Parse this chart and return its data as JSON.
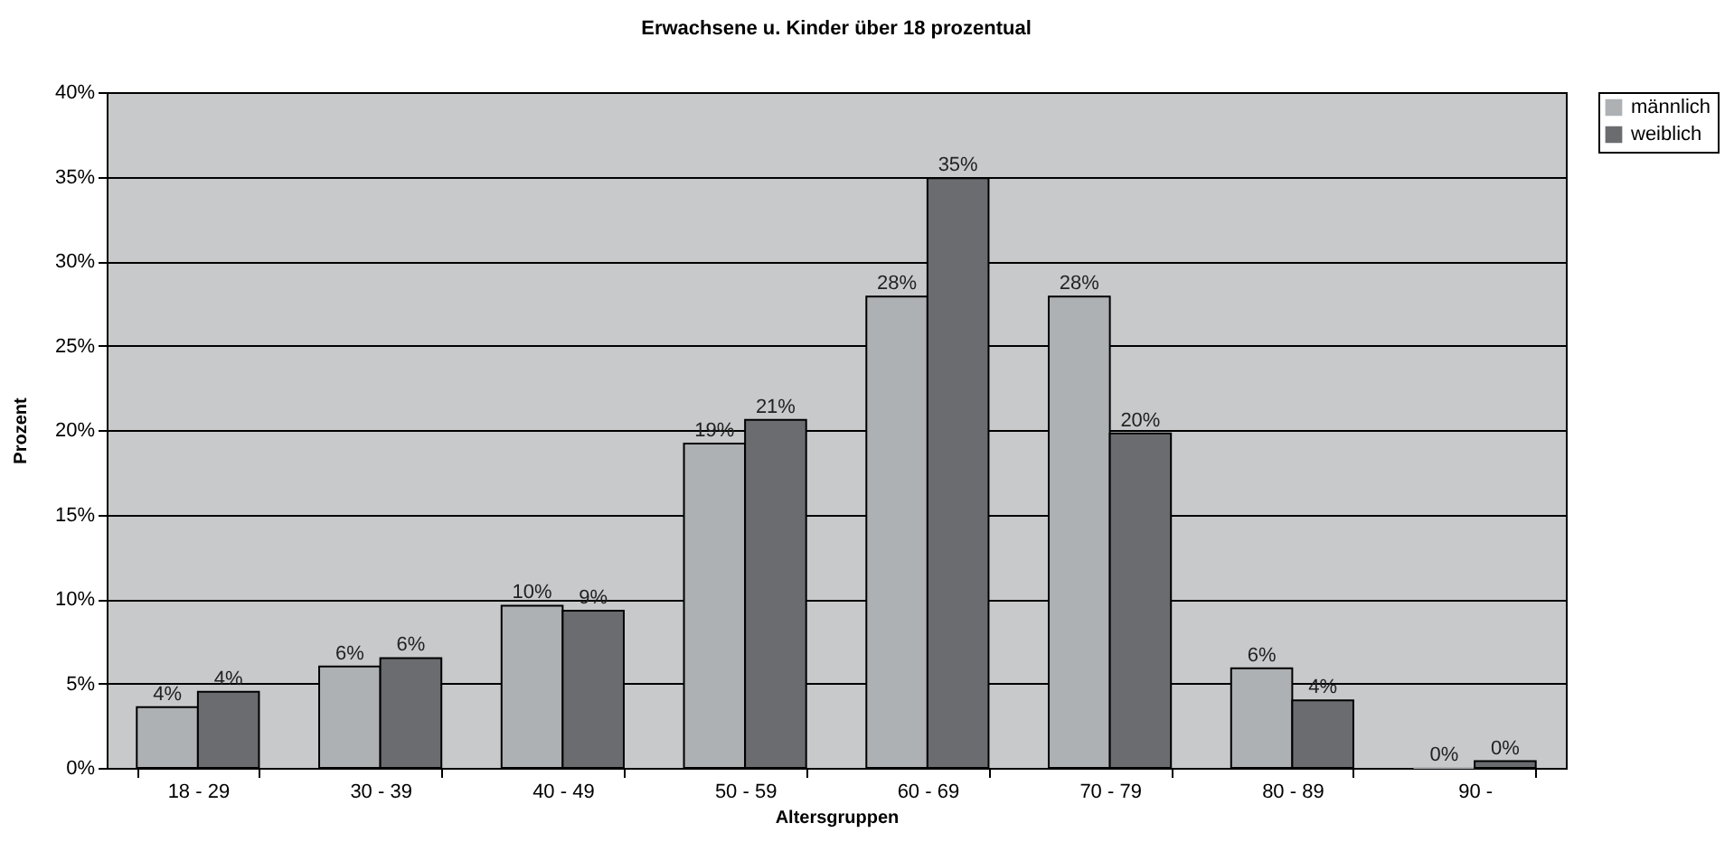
{
  "chart_data": {
    "type": "bar",
    "title": "Erwachsene u. Kinder über 18 prozentual",
    "xlabel": "Altersgruppen",
    "ylabel": "Prozent",
    "categories": [
      "18 - 29",
      "30 - 39",
      "40 - 49",
      "50 - 59",
      "60 - 69",
      "70 - 79",
      "80 - 89",
      "90 -"
    ],
    "series": [
      {
        "name": "männlich",
        "color": "#adb1b4",
        "values": [
          3.6,
          6.0,
          9.6,
          19.2,
          27.9,
          27.9,
          5.9,
          0
        ],
        "value_labels": [
          "4%",
          "6%",
          "10%",
          "19%",
          "28%",
          "28%",
          "6%",
          "0%"
        ]
      },
      {
        "name": "weiblich",
        "color": "#6b6c70",
        "values": [
          4.5,
          6.5,
          9.3,
          20.6,
          34.9,
          19.8,
          4.0,
          0.4
        ],
        "value_labels": [
          "4%",
          "6%",
          "9%",
          "21%",
          "35%",
          "20%",
          "4%",
          "0%"
        ]
      }
    ],
    "ylim": [
      0,
      40
    ],
    "yticks": [
      {
        "value": 0,
        "label": "0%"
      },
      {
        "value": 5,
        "label": "5%"
      },
      {
        "value": 10,
        "label": "10%"
      },
      {
        "value": 15,
        "label": "15%"
      },
      {
        "value": 20,
        "label": "20%"
      },
      {
        "value": 25,
        "label": "25%"
      },
      {
        "value": 30,
        "label": "30%"
      },
      {
        "value": 35,
        "label": "35%"
      },
      {
        "value": 40,
        "label": "40%"
      }
    ],
    "grid": "y",
    "legend": "right"
  }
}
